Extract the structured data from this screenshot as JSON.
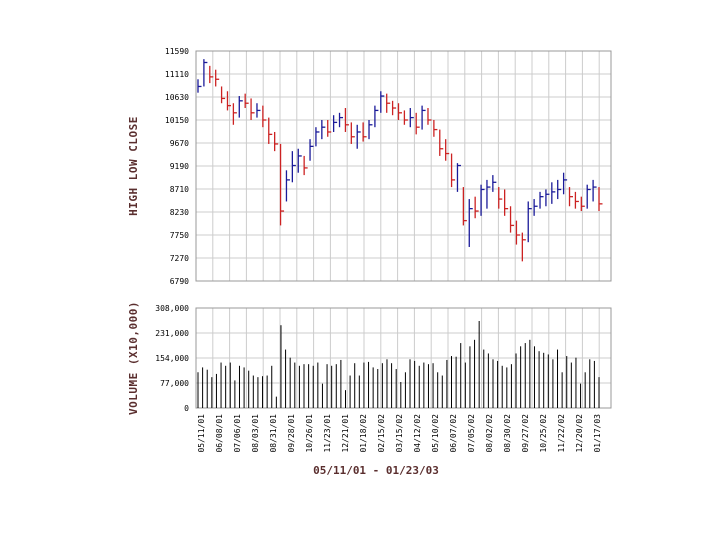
{
  "colors": {
    "up": "#1a1a99",
    "down": "#cc2222",
    "volume": "#000000",
    "grid": "#cccccc",
    "frame": "#999999",
    "label": "#5a2e2e"
  },
  "chart_data": [
    {
      "type": "ohlc",
      "ylabel": "HIGH LOW CLOSE",
      "ylim": [
        6790,
        11590
      ],
      "yticks": [
        "11590",
        "11110",
        "10630",
        "10150",
        "9670",
        "9190",
        "8710",
        "8230",
        "7750",
        "7270",
        "6790"
      ],
      "grid": true,
      "up_color": "#1a1a99",
      "down_color": "#cc2222",
      "bars": [
        {
          "high": 11000,
          "low": 10720,
          "close": 10850
        },
        {
          "high": 11420,
          "low": 10850,
          "close": 11350
        },
        {
          "high": 11280,
          "low": 10920,
          "close": 11050
        },
        {
          "high": 11200,
          "low": 10850,
          "close": 11000
        },
        {
          "high": 10850,
          "low": 10500,
          "close": 10600
        },
        {
          "high": 10750,
          "low": 10350,
          "close": 10450
        },
        {
          "high": 10500,
          "low": 10050,
          "close": 10300
        },
        {
          "high": 10650,
          "low": 10200,
          "close": 10550
        },
        {
          "high": 10700,
          "low": 10400,
          "close": 10500
        },
        {
          "high": 10600,
          "low": 10150,
          "close": 10300
        },
        {
          "high": 10500,
          "low": 10200,
          "close": 10350
        },
        {
          "high": 10450,
          "low": 10000,
          "close": 10150
        },
        {
          "high": 10200,
          "low": 9650,
          "close": 9850
        },
        {
          "high": 9900,
          "low": 9500,
          "close": 9650
        },
        {
          "high": 9650,
          "low": 7950,
          "close": 8250
        },
        {
          "high": 9100,
          "low": 8450,
          "close": 8900
        },
        {
          "high": 9500,
          "low": 8850,
          "close": 9200
        },
        {
          "high": 9550,
          "low": 9050,
          "close": 9400
        },
        {
          "high": 9400,
          "low": 9000,
          "close": 9150
        },
        {
          "high": 9750,
          "low": 9300,
          "close": 9600
        },
        {
          "high": 10000,
          "low": 9600,
          "close": 9900
        },
        {
          "high": 10150,
          "low": 9750,
          "close": 10000
        },
        {
          "high": 10150,
          "low": 9800,
          "close": 9900
        },
        {
          "high": 10250,
          "low": 9900,
          "close": 10100
        },
        {
          "high": 10300,
          "low": 10000,
          "close": 10200
        },
        {
          "high": 10400,
          "low": 9900,
          "close": 10050
        },
        {
          "high": 10100,
          "low": 9650,
          "close": 9800
        },
        {
          "high": 10050,
          "low": 9550,
          "close": 9900
        },
        {
          "high": 10100,
          "low": 9700,
          "close": 9800
        },
        {
          "high": 10150,
          "low": 9750,
          "close": 10050
        },
        {
          "high": 10450,
          "low": 10000,
          "close": 10350
        },
        {
          "high": 10750,
          "low": 10300,
          "close": 10650
        },
        {
          "high": 10700,
          "low": 10300,
          "close": 10500
        },
        {
          "high": 10550,
          "low": 10250,
          "close": 10400
        },
        {
          "high": 10500,
          "low": 10150,
          "close": 10300
        },
        {
          "high": 10350,
          "low": 10050,
          "close": 10150
        },
        {
          "high": 10400,
          "low": 10000,
          "close": 10200
        },
        {
          "high": 10300,
          "low": 9850,
          "close": 10000
        },
        {
          "high": 10450,
          "low": 9950,
          "close": 10350
        },
        {
          "high": 10400,
          "low": 10050,
          "close": 10150
        },
        {
          "high": 10150,
          "low": 9800,
          "close": 9950
        },
        {
          "high": 9950,
          "low": 9400,
          "close": 9550
        },
        {
          "high": 9750,
          "low": 9300,
          "close": 9450
        },
        {
          "high": 9450,
          "low": 8750,
          "close": 8900
        },
        {
          "high": 9250,
          "low": 8650,
          "close": 9200
        },
        {
          "high": 8750,
          "low": 7950,
          "close": 8050
        },
        {
          "high": 8500,
          "low": 7500,
          "close": 8300
        },
        {
          "high": 8550,
          "low": 8100,
          "close": 8250
        },
        {
          "high": 8800,
          "low": 8150,
          "close": 8700
        },
        {
          "high": 8900,
          "low": 8300,
          "close": 8750
        },
        {
          "high": 9000,
          "low": 8650,
          "close": 8850
        },
        {
          "high": 8750,
          "low": 8300,
          "close": 8500
        },
        {
          "high": 8700,
          "low": 8150,
          "close": 8300
        },
        {
          "high": 8350,
          "low": 7800,
          "close": 7950
        },
        {
          "high": 8050,
          "low": 7550,
          "close": 7750
        },
        {
          "high": 7800,
          "low": 7200,
          "close": 7650
        },
        {
          "high": 8450,
          "low": 7600,
          "close": 8300
        },
        {
          "high": 8500,
          "low": 8150,
          "close": 8350
        },
        {
          "high": 8650,
          "low": 8300,
          "close": 8550
        },
        {
          "high": 8700,
          "low": 8350,
          "close": 8600
        },
        {
          "high": 8850,
          "low": 8400,
          "close": 8650
        },
        {
          "high": 8900,
          "low": 8500,
          "close": 8700
        },
        {
          "high": 9050,
          "low": 8600,
          "close": 8900
        },
        {
          "high": 8750,
          "low": 8350,
          "close": 8550
        },
        {
          "high": 8650,
          "low": 8300,
          "close": 8450
        },
        {
          "high": 8550,
          "low": 8250,
          "close": 8350
        },
        {
          "high": 8800,
          "low": 8300,
          "close": 8700
        },
        {
          "high": 8900,
          "low": 8450,
          "close": 8750
        },
        {
          "high": 8750,
          "low": 8250,
          "close": 8400
        }
      ]
    },
    {
      "type": "bar",
      "ylabel": "VOLUME (X10,000)",
      "ylim": [
        0,
        308000
      ],
      "yticks": [
        "308,000",
        "231,000",
        "154,000",
        "77,000",
        "0"
      ],
      "grid": true,
      "xticks": [
        "05/11/01",
        "06/08/01",
        "07/06/01",
        "08/03/01",
        "08/31/01",
        "09/28/01",
        "10/26/01",
        "11/23/01",
        "12/21/01",
        "01/18/02",
        "02/15/02",
        "03/15/02",
        "04/12/02",
        "05/10/02",
        "06/07/02",
        "07/05/02",
        "08/02/02",
        "08/30/02",
        "09/27/02",
        "10/25/02",
        "11/22/02",
        "12/20/02",
        "01/17/03"
      ],
      "values": [
        110000,
        125000,
        118000,
        95000,
        105000,
        140000,
        130000,
        140000,
        85000,
        130000,
        125000,
        115000,
        100000,
        95000,
        98000,
        100000,
        130000,
        35000,
        255000,
        180000,
        155000,
        140000,
        130000,
        135000,
        135000,
        130000,
        140000,
        75000,
        135000,
        130000,
        135000,
        148000,
        55000,
        100000,
        138000,
        100000,
        140000,
        142000,
        125000,
        120000,
        138000,
        150000,
        138000,
        120000,
        80000,
        110000,
        150000,
        145000,
        130000,
        140000,
        135000,
        138000,
        110000,
        100000,
        148000,
        160000,
        158000,
        200000,
        140000,
        190000,
        210000,
        268000,
        180000,
        168000,
        150000,
        145000,
        130000,
        125000,
        135000,
        168000,
        190000,
        200000,
        210000,
        190000,
        175000,
        170000,
        165000,
        150000,
        180000,
        110000,
        160000,
        140000,
        155000,
        75000,
        110000,
        150000,
        145000,
        95000
      ]
    }
  ],
  "date_range": "05/11/01 - 01/23/03"
}
